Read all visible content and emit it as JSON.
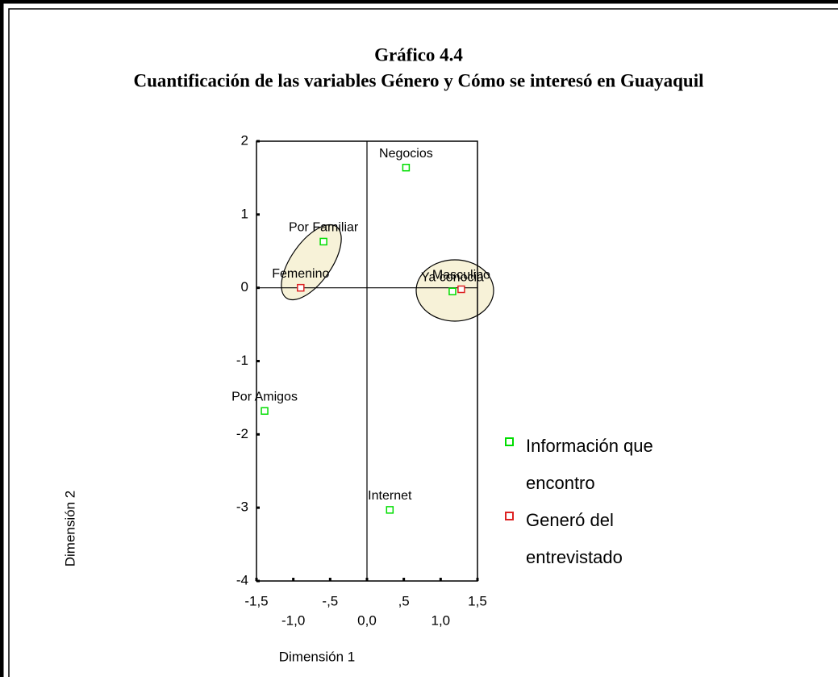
{
  "chart_data": {
    "type": "scatter",
    "title": "Gráfico 4.4",
    "subtitle": "Cuantificación de las variables Género y Cómo se interesó en Guayaquil",
    "xlabel": "Dimensión 1",
    "ylabel": "Dimensión 2",
    "xlim": [
      -1.5,
      1.5
    ],
    "ylim": [
      -4,
      2
    ],
    "xticks": [
      {
        "value": -1.5,
        "label": "-1,5"
      },
      {
        "value": -1.0,
        "label": "-1,0"
      },
      {
        "value": -0.5,
        "label": "-,5"
      },
      {
        "value": 0.0,
        "label": "0,0"
      },
      {
        "value": 0.5,
        "label": ",5"
      },
      {
        "value": 1.0,
        "label": "1,0"
      },
      {
        "value": 1.5,
        "label": "1,5"
      }
    ],
    "yticks": [
      2,
      1,
      0,
      -1,
      -2,
      -3,
      -4
    ],
    "series": [
      {
        "name": "Información que encontro",
        "color": "#00dd00",
        "labels": [
          "Negocios",
          "Por Familiar",
          "Ya conocia",
          "Por Amigos",
          "Internet"
        ],
        "x": [
          0.53,
          -0.59,
          1.16,
          -1.39,
          0.31
        ],
        "values": [
          1.64,
          0.63,
          -0.05,
          -1.68,
          -3.03
        ]
      },
      {
        "name": "Generó del entrevistado",
        "color": "#dd2222",
        "labels": [
          "Femenino",
          "Masculino"
        ],
        "x": [
          -0.9,
          1.28
        ],
        "values": [
          0.0,
          -0.02
        ]
      }
    ]
  }
}
